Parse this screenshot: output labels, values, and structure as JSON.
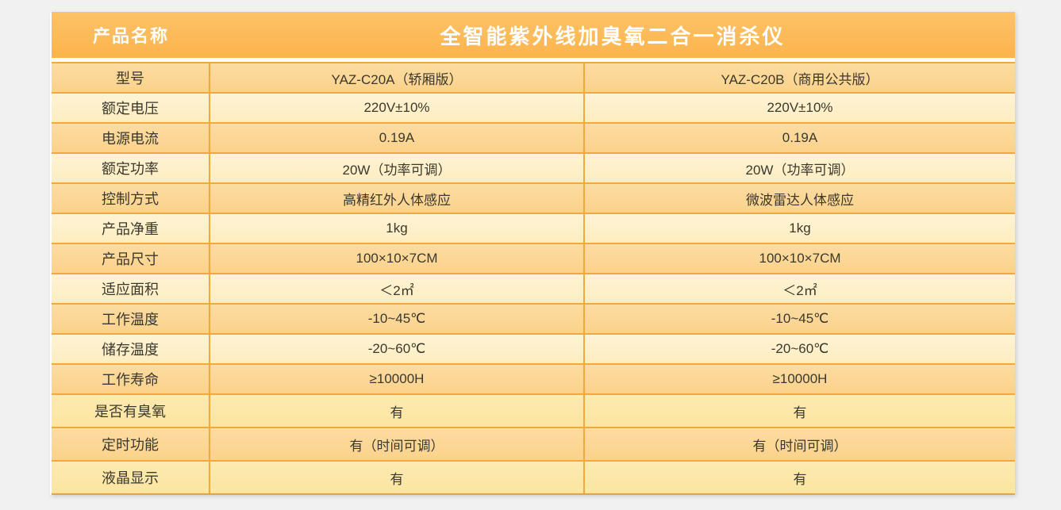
{
  "page": {
    "background": "#f1f1f2"
  },
  "table": {
    "header": {
      "label": "产品名称",
      "title": "全智能紫外线加臭氧二合一消杀仪"
    },
    "rows": [
      {
        "label": "型号",
        "col_a": "YAZ-C20A（轿厢版）",
        "col_b": "YAZ-C20B（商用公共版）",
        "shade": "dark",
        "tall": false
      },
      {
        "label": "额定电压",
        "col_a": "220V±10%",
        "col_b": "220V±10%",
        "shade": "light",
        "tall": false
      },
      {
        "label": "电源电流",
        "col_a": "0.19A",
        "col_b": "0.19A",
        "shade": "dark",
        "tall": false
      },
      {
        "label": "额定功率",
        "col_a": "20W（功率可调）",
        "col_b": "20W（功率可调）",
        "shade": "light",
        "tall": false
      },
      {
        "label": "控制方式",
        "col_a": "高精红外人体感应",
        "col_b": "微波雷达人体感应",
        "shade": "dark",
        "tall": false
      },
      {
        "label": "产品净重",
        "col_a": "1kg",
        "col_b": "1kg",
        "shade": "light",
        "tall": false
      },
      {
        "label": "产品尺寸",
        "col_a": "100×10×7CM",
        "col_b": "100×10×7CM",
        "shade": "dark",
        "tall": false
      },
      {
        "label": "适应面积",
        "col_a": "＜2㎡",
        "col_b": "＜2㎡",
        "shade": "light",
        "tall": false
      },
      {
        "label": "工作温度",
        "col_a": "-10~45℃",
        "col_b": "-10~45℃",
        "shade": "dark",
        "tall": false
      },
      {
        "label": "储存温度",
        "col_a": "-20~60℃",
        "col_b": "-20~60℃",
        "shade": "light",
        "tall": false
      },
      {
        "label": "工作寿命",
        "col_a": "≥10000H",
        "col_b": "≥10000H",
        "shade": "dark",
        "tall": false
      },
      {
        "label": "是否有臭氧",
        "col_a": "有",
        "col_b": "有",
        "shade": "light",
        "tall": true
      },
      {
        "label": "定时功能",
        "col_a": "有（时间可调）",
        "col_b": "有（时间可调）",
        "shade": "dark",
        "tall": true
      },
      {
        "label": "液晶显示",
        "col_a": "有",
        "col_b": "有",
        "shade": "light",
        "tall": true
      }
    ],
    "colors": {
      "header_bg_top": "#fdc267",
      "header_bg_bottom": "#fbb44d",
      "header_text": "#ffffff",
      "grid_line": "#f1a93e",
      "grid_line_heavy": "#e9a23c",
      "dark_row_top": "#fcdca1",
      "dark_row_bottom": "#fbd28b",
      "light_row_top": "#fef3d4",
      "light_row_bottom": "#fdedc0",
      "yellow_light_row_top": "#fdeab2",
      "yellow_light_row_bottom": "#fce5a0",
      "cell_text": "#3b382e",
      "page_background": "#f1f1f2"
    }
  }
}
